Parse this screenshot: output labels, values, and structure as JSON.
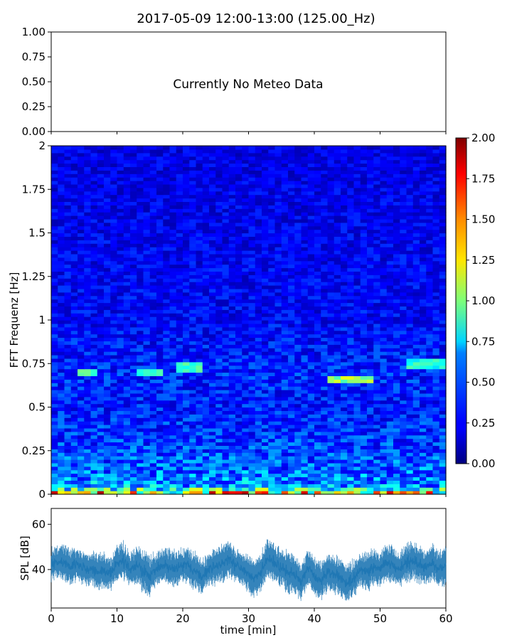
{
  "figure": {
    "title": "2017-05-09 12:00-13:00 (125.00_Hz)"
  },
  "chart_data": [
    {
      "type": "line",
      "panel": "meteo",
      "annotation": "Currently No Meteo Data",
      "ylim": [
        0,
        1
      ],
      "yticks": [
        {
          "value": 0,
          "label": "0.00"
        },
        {
          "value": 0.25,
          "label": "0.25"
        },
        {
          "value": 0.5,
          "label": "0.50"
        },
        {
          "value": 0.75,
          "label": "0.75"
        },
        {
          "value": 1,
          "label": "1.00"
        }
      ],
      "xlim": [
        0,
        60
      ],
      "series": []
    },
    {
      "type": "heatmap",
      "panel": "spectrogram",
      "ylabel": "FFT Frequenz [Hz]",
      "xlim": [
        0,
        60
      ],
      "ylim": [
        0,
        2
      ],
      "yticks": [
        {
          "value": 0,
          "label": "0"
        },
        {
          "value": 0.25,
          "label": "0.25"
        },
        {
          "value": 0.5,
          "label": "0.5"
        },
        {
          "value": 0.75,
          "label": "0.75"
        },
        {
          "value": 1,
          "label": "1"
        },
        {
          "value": 1.25,
          "label": "1.25"
        },
        {
          "value": 1.5,
          "label": "1.5"
        },
        {
          "value": 1.75,
          "label": "1.75"
        },
        {
          "value": 2,
          "label": "2"
        }
      ],
      "colormap": "jet",
      "clim": [
        0,
        2
      ],
      "colorbar_ticks": [
        "0.00",
        "0.25",
        "0.50",
        "0.75",
        "1.00",
        "1.25",
        "1.50",
        "1.75",
        "2.00"
      ],
      "time_bins": 60,
      "freq_bins": 100,
      "typical_levels_by_freq": [
        {
          "freq": 0.0,
          "level": 1.6
        },
        {
          "freq": 0.02,
          "level": 0.9
        },
        {
          "freq": 0.05,
          "level": 0.55
        },
        {
          "freq": 0.15,
          "level": 0.45
        },
        {
          "freq": 0.25,
          "level": 0.38
        },
        {
          "freq": 0.5,
          "level": 0.3
        },
        {
          "freq": 0.7,
          "level": 0.32
        },
        {
          "freq": 1.0,
          "level": 0.25
        },
        {
          "freq": 1.5,
          "level": 0.22
        },
        {
          "freq": 2.0,
          "level": 0.2
        }
      ],
      "features": [
        {
          "t_start": 4,
          "t_end": 7,
          "freq": 0.7,
          "level": 0.95
        },
        {
          "t_start": 13,
          "t_end": 17,
          "freq": 0.7,
          "level": 0.8
        },
        {
          "t_start": 19,
          "t_end": 23,
          "freq": 0.73,
          "level": 0.85
        },
        {
          "t_start": 42,
          "t_end": 49,
          "freq": 0.66,
          "level": 1.05
        },
        {
          "t_start": 54,
          "t_end": 60,
          "freq": 0.75,
          "level": 0.8
        }
      ]
    },
    {
      "type": "line",
      "panel": "spl",
      "ylabel": "SPL [dB]",
      "xlabel": "time [min]",
      "xlim": [
        0,
        60
      ],
      "ylim": [
        23,
        67
      ],
      "yticks": [
        {
          "value": 40,
          "label": "40"
        },
        {
          "value": 60,
          "label": "60"
        }
      ],
      "xticks": [
        {
          "value": 0,
          "label": "0"
        },
        {
          "value": 10,
          "label": "10"
        },
        {
          "value": 20,
          "label": "20"
        },
        {
          "value": 30,
          "label": "30"
        },
        {
          "value": 40,
          "label": "40"
        },
        {
          "value": 50,
          "label": "50"
        },
        {
          "value": 60,
          "label": "60"
        }
      ],
      "color": "#1f77b4",
      "series": [
        {
          "x": [
            0,
            1,
            2,
            3,
            4,
            5,
            6,
            7,
            8,
            9,
            10,
            11,
            12,
            13,
            14,
            15,
            16,
            17,
            18,
            19,
            20,
            21,
            22,
            23,
            24,
            25,
            26,
            27,
            28,
            29,
            30,
            31,
            32,
            33,
            34,
            35,
            36,
            37,
            38,
            39,
            40,
            41,
            42,
            43,
            44,
            45,
            46,
            47,
            48,
            49,
            50,
            51,
            52,
            53,
            54,
            55,
            56,
            57,
            58,
            59,
            60
          ],
          "values": [
            42,
            44,
            43,
            41,
            42,
            40,
            41,
            39,
            40,
            38,
            42,
            44,
            40,
            42,
            39,
            37,
            40,
            42,
            41,
            40,
            42,
            41,
            39,
            37,
            40,
            41,
            43,
            45,
            42,
            41,
            38,
            36,
            40,
            45,
            43,
            41,
            39,
            38,
            34,
            41,
            37,
            35,
            39,
            38,
            36,
            34,
            36,
            40,
            39,
            41,
            40,
            43,
            42,
            40,
            43,
            44,
            42,
            41,
            43,
            40,
            42
          ],
          "spread": [
            6,
            6,
            7,
            7,
            6,
            6,
            6,
            7,
            7,
            6,
            7,
            7,
            6,
            7,
            8,
            8,
            6,
            6,
            7,
            7,
            6,
            7,
            7,
            6,
            6,
            7,
            7,
            7,
            6,
            6,
            7,
            7,
            7,
            8,
            7,
            7,
            8,
            7,
            7,
            7,
            7,
            7,
            7,
            7,
            7,
            7,
            7,
            6,
            7,
            7,
            6,
            7,
            7,
            6,
            7,
            7,
            7,
            6,
            7,
            7,
            8
          ]
        }
      ]
    }
  ]
}
